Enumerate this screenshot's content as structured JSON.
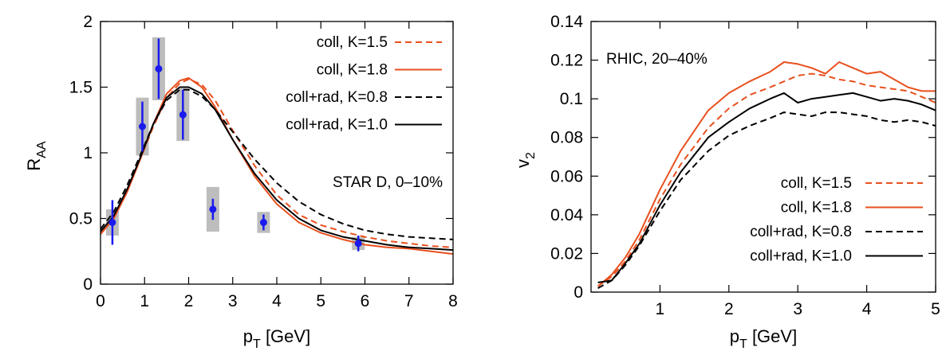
{
  "chart_data": [
    {
      "type": "line",
      "xlabel_main": "p",
      "xlabel_sub": "T",
      "xlabel_unit": " [GeV]",
      "ylabel_main": "R",
      "ylabel_sub": "AA",
      "xlim": [
        0,
        8
      ],
      "ylim": [
        0,
        2
      ],
      "xticks": [
        0,
        1,
        2,
        3,
        4,
        5,
        6,
        7,
        8
      ],
      "yticks": [
        0,
        0.5,
        1,
        1.5,
        2
      ],
      "xtick_labels": [
        "0",
        "1",
        "2",
        "3",
        "4",
        "5",
        "6",
        "7",
        "8"
      ],
      "ytick_labels": [
        "0",
        "0.5",
        "1",
        "1.5",
        "2"
      ],
      "annotation": "STAR D, 0–10%",
      "legend_position": "top-right",
      "series": [
        {
          "name": "coll, K=1.5",
          "style": "dashed",
          "color": "#e8501e",
          "x": [
            0,
            0.3,
            0.6,
            0.9,
            1.2,
            1.5,
            1.8,
            2.0,
            2.3,
            2.6,
            3.0,
            3.5,
            4.0,
            4.5,
            5.0,
            5.5,
            6.0,
            6.5,
            7.0,
            7.5,
            8.0
          ],
          "y": [
            0.38,
            0.5,
            0.7,
            0.95,
            1.2,
            1.42,
            1.53,
            1.56,
            1.52,
            1.4,
            1.17,
            0.9,
            0.68,
            0.53,
            0.45,
            0.4,
            0.36,
            0.33,
            0.31,
            0.29,
            0.28
          ]
        },
        {
          "name": "coll, K=1.8",
          "style": "solid",
          "color": "#e8501e",
          "x": [
            0,
            0.3,
            0.6,
            0.9,
            1.2,
            1.5,
            1.8,
            2.0,
            2.3,
            2.6,
            3.0,
            3.5,
            4.0,
            4.5,
            5.0,
            5.5,
            6.0,
            6.5,
            7.0,
            7.5,
            8.0
          ],
          "y": [
            0.38,
            0.5,
            0.7,
            0.95,
            1.22,
            1.45,
            1.55,
            1.57,
            1.5,
            1.35,
            1.1,
            0.82,
            0.61,
            0.47,
            0.39,
            0.34,
            0.3,
            0.28,
            0.27,
            0.25,
            0.23
          ]
        },
        {
          "name": "coll+rad, K=0.8",
          "style": "dashed",
          "color": "#000000",
          "x": [
            0,
            0.3,
            0.6,
            0.9,
            1.2,
            1.5,
            1.8,
            2.0,
            2.3,
            2.6,
            3.0,
            3.5,
            4.0,
            4.5,
            5.0,
            5.5,
            6.0,
            6.5,
            7.0,
            7.5,
            8.0
          ],
          "y": [
            0.42,
            0.55,
            0.75,
            0.98,
            1.22,
            1.4,
            1.48,
            1.48,
            1.43,
            1.33,
            1.16,
            0.95,
            0.77,
            0.63,
            0.53,
            0.46,
            0.41,
            0.38,
            0.36,
            0.35,
            0.34
          ]
        },
        {
          "name": "coll+rad, K=1.0",
          "style": "solid",
          "color": "#000000",
          "x": [
            0,
            0.3,
            0.6,
            0.9,
            1.2,
            1.5,
            1.8,
            2.0,
            2.3,
            2.6,
            3.0,
            3.5,
            4.0,
            4.5,
            5.0,
            5.5,
            6.0,
            6.5,
            7.0,
            7.5,
            8.0
          ],
          "y": [
            0.4,
            0.52,
            0.72,
            0.96,
            1.22,
            1.42,
            1.5,
            1.5,
            1.45,
            1.33,
            1.1,
            0.84,
            0.64,
            0.5,
            0.41,
            0.36,
            0.33,
            0.3,
            0.28,
            0.27,
            0.26
          ]
        }
      ],
      "data_points": {
        "name": "STAR D",
        "color": "#1a1aee",
        "points": [
          {
            "x": 0.27,
            "y": 0.47,
            "err": 0.17,
            "sys": 0.1
          },
          {
            "x": 0.95,
            "y": 1.2,
            "err": 0.19,
            "sys": 0.22
          },
          {
            "x": 1.32,
            "y": 1.64,
            "err": 0.23,
            "sys": 0.24
          },
          {
            "x": 1.87,
            "y": 1.29,
            "err": 0.19,
            "sys": 0.2
          },
          {
            "x": 2.55,
            "y": 0.57,
            "err": 0.08,
            "sys": 0.17
          },
          {
            "x": 3.7,
            "y": 0.47,
            "err": 0.06,
            "sys": 0.08
          },
          {
            "x": 5.85,
            "y": 0.31,
            "err": 0.06,
            "sys": 0.05
          }
        ]
      }
    },
    {
      "type": "line",
      "xlabel_main": "p",
      "xlabel_sub": "T",
      "xlabel_unit": " [GeV]",
      "ylabel_main": "v",
      "ylabel_sub": "2",
      "xlim": [
        0,
        5
      ],
      "ylim": [
        0,
        0.14
      ],
      "xticks": [
        1,
        2,
        3,
        4,
        5
      ],
      "yticks": [
        0,
        0.02,
        0.04,
        0.06,
        0.08,
        0.1,
        0.12,
        0.14
      ],
      "xtick_labels": [
        "1",
        "2",
        "3",
        "4",
        "5"
      ],
      "ytick_labels": [
        "0",
        "0.02",
        "0.04",
        "0.06",
        "0.08",
        "0.1",
        "0.12",
        "0.14"
      ],
      "annotation": "RHIC, 20–40%",
      "legend_position": "bottom-right",
      "series": [
        {
          "name": "coll, K=1.5",
          "style": "dashed",
          "color": "#e8501e",
          "x": [
            0.1,
            0.3,
            0.5,
            0.7,
            1.0,
            1.3,
            1.7,
            2.0,
            2.3,
            2.6,
            2.8,
            3.0,
            3.2,
            3.4,
            3.6,
            3.8,
            4.0,
            4.2,
            4.4,
            4.6,
            4.8,
            5.0
          ],
          "y": [
            0.003,
            0.008,
            0.016,
            0.027,
            0.048,
            0.066,
            0.085,
            0.095,
            0.102,
            0.106,
            0.109,
            0.112,
            0.113,
            0.112,
            0.11,
            0.109,
            0.107,
            0.106,
            0.105,
            0.104,
            0.101,
            0.098
          ]
        },
        {
          "name": "coll, K=1.8",
          "style": "solid",
          "color": "#e8501e",
          "x": [
            0.1,
            0.3,
            0.5,
            0.7,
            1.0,
            1.3,
            1.7,
            2.0,
            2.3,
            2.6,
            2.8,
            3.0,
            3.2,
            3.4,
            3.6,
            3.8,
            4.0,
            4.2,
            4.4,
            4.6,
            4.8,
            5.0
          ],
          "y": [
            0.003,
            0.009,
            0.018,
            0.03,
            0.053,
            0.073,
            0.094,
            0.103,
            0.109,
            0.114,
            0.119,
            0.118,
            0.116,
            0.113,
            0.119,
            0.116,
            0.113,
            0.114,
            0.11,
            0.106,
            0.104,
            0.104
          ]
        },
        {
          "name": "coll+rad, K=0.8",
          "style": "dashed",
          "color": "#000000",
          "x": [
            0.1,
            0.3,
            0.5,
            0.7,
            1.0,
            1.3,
            1.7,
            2.0,
            2.3,
            2.6,
            2.8,
            3.0,
            3.2,
            3.4,
            3.6,
            3.8,
            4.0,
            4.2,
            4.4,
            4.6,
            4.8,
            5.0
          ],
          "y": [
            0.002,
            0.006,
            0.014,
            0.024,
            0.042,
            0.058,
            0.073,
            0.081,
            0.086,
            0.09,
            0.093,
            0.092,
            0.091,
            0.093,
            0.093,
            0.092,
            0.091,
            0.089,
            0.088,
            0.089,
            0.088,
            0.086
          ]
        },
        {
          "name": "coll+rad, K=1.0",
          "style": "solid",
          "color": "#000000",
          "x": [
            0.1,
            0.3,
            0.5,
            0.7,
            1.0,
            1.3,
            1.7,
            2.0,
            2.3,
            2.6,
            2.8,
            3.0,
            3.2,
            3.4,
            3.6,
            3.8,
            4.0,
            4.2,
            4.4,
            4.6,
            4.8,
            5.0
          ],
          "y": [
            0.005,
            0.006,
            0.015,
            0.025,
            0.045,
            0.062,
            0.08,
            0.088,
            0.095,
            0.1,
            0.103,
            0.098,
            0.1,
            0.101,
            0.102,
            0.103,
            0.101,
            0.099,
            0.1,
            0.099,
            0.097,
            0.094
          ]
        }
      ]
    }
  ]
}
